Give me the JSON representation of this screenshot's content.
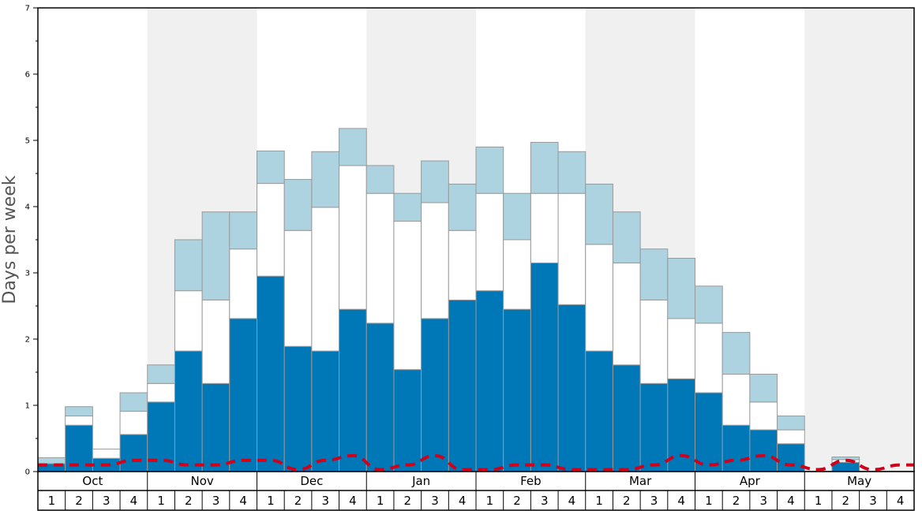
{
  "chart_data": {
    "type": "bar",
    "stacked": true,
    "ylabel": "Days per week",
    "ylim": [
      0,
      7
    ],
    "yticks": [
      0,
      1,
      2,
      3,
      4,
      5,
      6,
      7
    ],
    "months": [
      "Oct",
      "Nov",
      "Dec",
      "Jan",
      "Feb",
      "Mar",
      "Apr",
      "May"
    ],
    "weeks_per_month": [
      "1",
      "2",
      "3",
      "4"
    ],
    "grid": false,
    "shaded_months": [
      "Nov",
      "Jan",
      "Mar",
      "May"
    ],
    "series": [
      {
        "color": "#0077b6",
        "values": [
          0.12,
          0.7,
          0.2,
          0.56,
          1.05,
          1.82,
          1.33,
          2.31,
          2.95,
          1.89,
          1.82,
          2.45,
          2.24,
          1.54,
          2.31,
          2.59,
          2.73,
          2.45,
          3.15,
          2.52,
          1.82,
          1.61,
          1.33,
          1.4,
          1.19,
          0.7,
          0.63,
          0.42,
          0.0,
          0.14,
          0.0,
          0.0
        ]
      },
      {
        "color": "#ffffff",
        "values": [
          0.0,
          0.14,
          0.14,
          0.35,
          0.28,
          0.91,
          1.26,
          1.05,
          1.4,
          1.75,
          2.17,
          2.17,
          1.96,
          2.24,
          1.75,
          1.05,
          1.47,
          1.05,
          1.05,
          1.68,
          1.61,
          1.54,
          1.26,
          0.91,
          1.05,
          0.77,
          0.42,
          0.21,
          0.0,
          0.04,
          0.0,
          0.0
        ]
      },
      {
        "color": "#aed3e0",
        "values": [
          0.09,
          0.14,
          0.0,
          0.28,
          0.28,
          0.77,
          1.33,
          0.56,
          0.49,
          0.77,
          0.84,
          0.56,
          0.42,
          0.42,
          0.63,
          0.7,
          0.7,
          0.7,
          0.77,
          0.63,
          0.91,
          0.77,
          0.77,
          0.91,
          0.56,
          0.63,
          0.42,
          0.21,
          0.0,
          0.04,
          0.0,
          0.0
        ]
      },
      {
        "type": "line",
        "style": "dashed",
        "color": "#d0021b",
        "values": [
          0.1,
          0.1,
          0.1,
          0.17,
          0.17,
          0.1,
          0.1,
          0.17,
          0.17,
          0.03,
          0.17,
          0.24,
          0.03,
          0.1,
          0.24,
          0.03,
          0.03,
          0.1,
          0.1,
          0.03,
          0.03,
          0.03,
          0.1,
          0.24,
          0.1,
          0.17,
          0.24,
          0.1,
          0.03,
          0.17,
          0.03,
          0.1
        ]
      }
    ]
  }
}
